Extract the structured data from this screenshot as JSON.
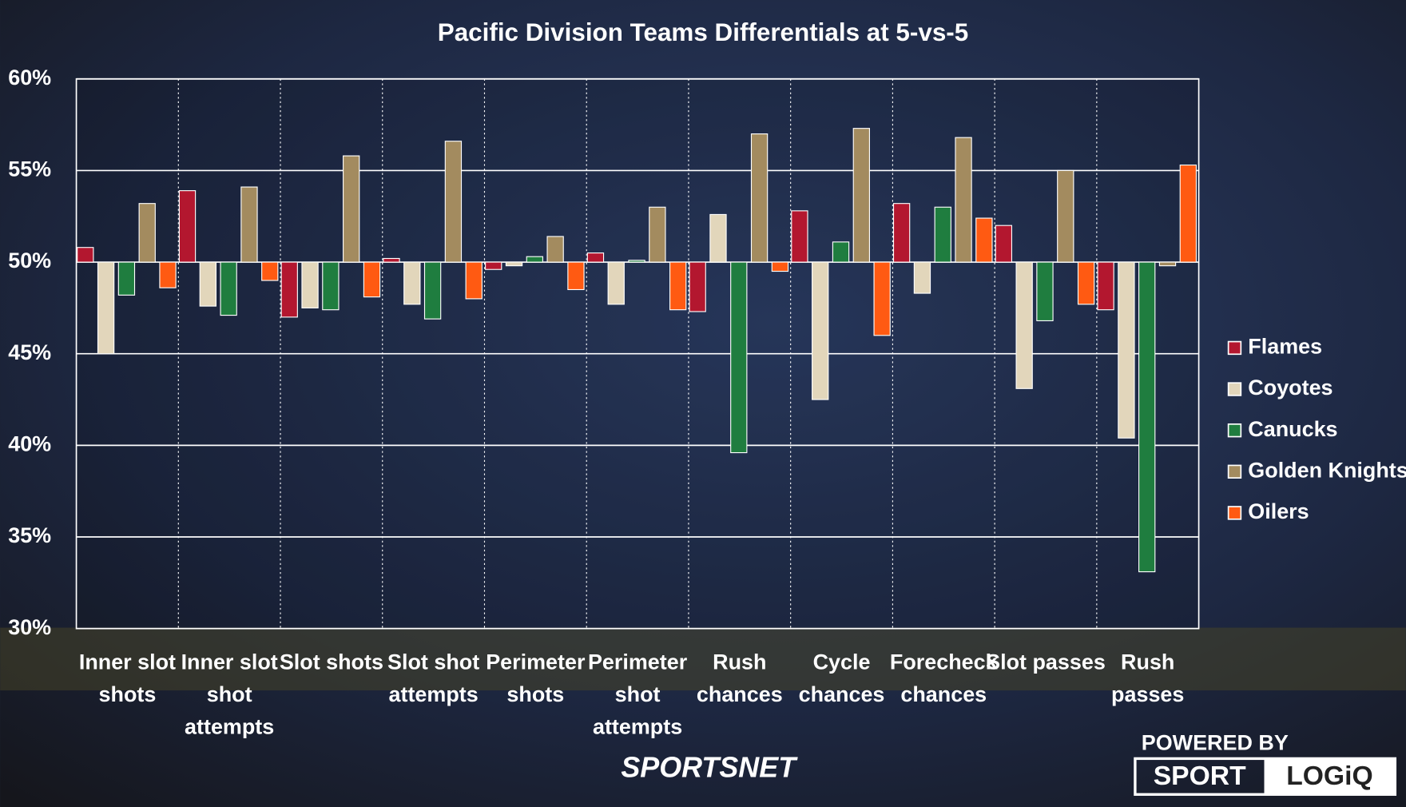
{
  "chart_data": {
    "type": "bar",
    "title": "Pacific Division Teams Differentials at 5-vs-5",
    "categories": [
      [
        "Inner slot",
        "shots"
      ],
      [
        "Inner slot",
        "shot",
        "attempts"
      ],
      [
        "Slot shots"
      ],
      [
        "Slot shot",
        "attempts"
      ],
      [
        "Perimeter",
        "shots"
      ],
      [
        "Perimeter",
        "shot",
        "attempts"
      ],
      [
        "Rush",
        "chances"
      ],
      [
        "Cycle",
        "chances"
      ],
      [
        "Forecheck",
        "chances"
      ],
      [
        "Slot passes"
      ],
      [
        "Rush",
        "passes"
      ]
    ],
    "series": [
      {
        "name": "Flames",
        "color": "#b3172f",
        "values": [
          50.8,
          53.9,
          47.0,
          50.2,
          49.6,
          50.5,
          47.3,
          52.8,
          53.2,
          52.0,
          47.4
        ]
      },
      {
        "name": "Coyotes",
        "color": "#e2d6bb",
        "values": [
          45.0,
          47.6,
          47.5,
          47.7,
          49.8,
          47.7,
          52.6,
          42.5,
          48.3,
          43.1,
          40.4
        ]
      },
      {
        "name": "Canucks",
        "color": "#1f7d3f",
        "values": [
          48.2,
          47.1,
          47.4,
          46.9,
          50.3,
          50.1,
          39.6,
          51.1,
          53.0,
          46.8,
          33.1
        ]
      },
      {
        "name": "Golden Knights",
        "color": "#a38b5f",
        "values": [
          53.2,
          54.1,
          55.8,
          56.6,
          51.4,
          53.0,
          57.0,
          57.3,
          56.8,
          55.0,
          49.8
        ]
      },
      {
        "name": "Oilers",
        "color": "#ff5a12",
        "values": [
          48.6,
          49.0,
          48.1,
          48.0,
          48.5,
          47.4,
          49.5,
          46.0,
          52.4,
          47.7,
          55.3
        ]
      }
    ],
    "baseline": 50,
    "ylim": [
      30,
      60
    ],
    "yticks": [
      {
        "value": 30,
        "label": "30%"
      },
      {
        "value": 35,
        "label": "35%"
      },
      {
        "value": 40,
        "label": "40%"
      },
      {
        "value": 45,
        "label": "45%"
      },
      {
        "value": 50,
        "label": "50%"
      },
      {
        "value": 55,
        "label": "55%"
      },
      {
        "value": 60,
        "label": "60%"
      }
    ],
    "grid": true,
    "legend": "right"
  },
  "logos": {
    "broadcaster": "SPORTSNET",
    "powered_by": "POWERED BY",
    "sport": "SPORT",
    "logiq": "LOGiQ"
  }
}
